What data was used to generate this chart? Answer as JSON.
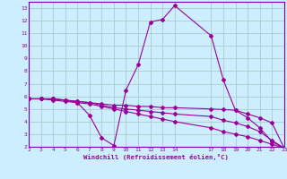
{
  "background_color": "#cceeff",
  "grid_color": "#aacccc",
  "line_color": "#990099",
  "spine_color": "#7700aa",
  "title": "Windchill (Refroidissement éolien,°C)",
  "xlim": [
    2,
    23
  ],
  "ylim": [
    2,
    13.5
  ],
  "xticks": [
    2,
    3,
    4,
    5,
    6,
    7,
    8,
    9,
    10,
    11,
    12,
    13,
    14,
    17,
    18,
    19,
    20,
    21,
    22,
    23
  ],
  "yticks": [
    2,
    3,
    4,
    5,
    6,
    7,
    8,
    9,
    10,
    11,
    12,
    13
  ],
  "series1": [
    [
      2,
      5.8
    ],
    [
      3,
      5.8
    ],
    [
      4,
      5.8
    ],
    [
      5,
      5.7
    ],
    [
      6,
      5.5
    ],
    [
      7,
      4.5
    ],
    [
      8,
      2.7
    ],
    [
      9,
      2.1
    ],
    [
      10,
      6.5
    ],
    [
      11,
      8.5
    ],
    [
      12,
      11.9
    ],
    [
      13,
      12.1
    ],
    [
      14,
      13.2
    ],
    [
      17,
      10.8
    ],
    [
      18,
      7.3
    ],
    [
      19,
      4.9
    ],
    [
      20,
      4.3
    ],
    [
      21,
      3.5
    ],
    [
      22,
      2.4
    ],
    [
      23,
      1.9
    ]
  ],
  "series2": [
    [
      2,
      5.8
    ],
    [
      3,
      5.8
    ],
    [
      4,
      5.8
    ],
    [
      5,
      5.7
    ],
    [
      6,
      5.6
    ],
    [
      7,
      5.5
    ],
    [
      8,
      5.4
    ],
    [
      9,
      5.3
    ],
    [
      10,
      5.3
    ],
    [
      11,
      5.2
    ],
    [
      12,
      5.2
    ],
    [
      13,
      5.1
    ],
    [
      14,
      5.1
    ],
    [
      17,
      5.0
    ],
    [
      18,
      4.95
    ],
    [
      19,
      4.9
    ],
    [
      20,
      4.6
    ],
    [
      21,
      4.3
    ],
    [
      22,
      3.9
    ],
    [
      23,
      1.9
    ]
  ],
  "series3": [
    [
      2,
      5.8
    ],
    [
      3,
      5.8
    ],
    [
      4,
      5.8
    ],
    [
      5,
      5.7
    ],
    [
      6,
      5.6
    ],
    [
      7,
      5.5
    ],
    [
      8,
      5.3
    ],
    [
      9,
      5.1
    ],
    [
      10,
      5.0
    ],
    [
      11,
      4.9
    ],
    [
      12,
      4.8
    ],
    [
      13,
      4.7
    ],
    [
      14,
      4.6
    ],
    [
      17,
      4.4
    ],
    [
      18,
      4.1
    ],
    [
      19,
      3.9
    ],
    [
      20,
      3.6
    ],
    [
      21,
      3.2
    ],
    [
      22,
      2.5
    ],
    [
      23,
      1.9
    ]
  ],
  "series4": [
    [
      2,
      5.8
    ],
    [
      3,
      5.8
    ],
    [
      4,
      5.7
    ],
    [
      5,
      5.6
    ],
    [
      6,
      5.5
    ],
    [
      7,
      5.4
    ],
    [
      8,
      5.2
    ],
    [
      9,
      5.0
    ],
    [
      10,
      4.8
    ],
    [
      11,
      4.6
    ],
    [
      12,
      4.4
    ],
    [
      13,
      4.2
    ],
    [
      14,
      4.0
    ],
    [
      17,
      3.5
    ],
    [
      18,
      3.2
    ],
    [
      19,
      3.0
    ],
    [
      20,
      2.8
    ],
    [
      21,
      2.5
    ],
    [
      22,
      2.2
    ],
    [
      23,
      1.9
    ]
  ]
}
